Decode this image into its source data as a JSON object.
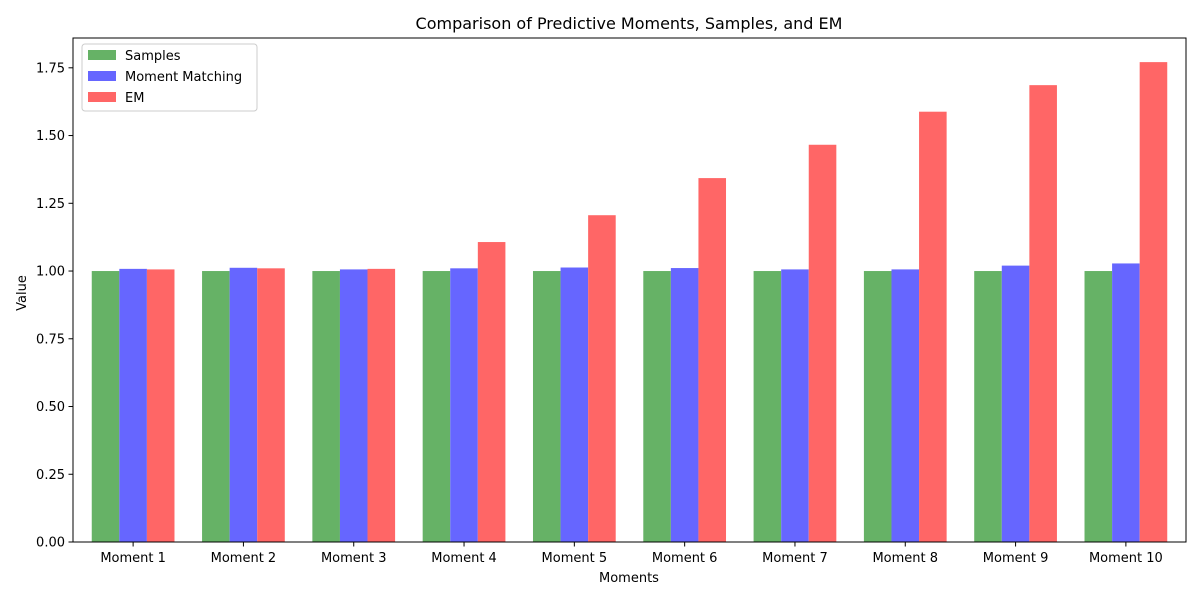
{
  "chart_data": {
    "type": "bar",
    "title": "Comparison of Predictive Moments, Samples, and EM",
    "xlabel": "Moments",
    "ylabel": "Value",
    "categories": [
      "Moment 1",
      "Moment 2",
      "Moment 3",
      "Moment 4",
      "Moment 5",
      "Moment 6",
      "Moment 7",
      "Moment 8",
      "Moment 9",
      "Moment 10"
    ],
    "series": [
      {
        "name": "Samples",
        "color": "#66b266",
        "values": [
          1.0,
          1.0,
          1.0,
          1.0,
          1.0,
          1.0,
          1.0,
          1.0,
          1.0,
          1.0
        ]
      },
      {
        "name": "Moment Matching",
        "color": "#6666ff",
        "values": [
          1.008,
          1.012,
          1.006,
          1.01,
          1.013,
          1.011,
          1.006,
          1.006,
          1.02,
          1.028
        ]
      },
      {
        "name": "EM",
        "color": "#ff6666",
        "values": [
          1.006,
          1.01,
          1.008,
          1.107,
          1.206,
          1.343,
          1.466,
          1.588,
          1.686,
          1.771
        ]
      }
    ],
    "ylim": [
      0,
      1.86
    ],
    "yticks": [
      0.0,
      0.25,
      0.5,
      0.75,
      1.0,
      1.25,
      1.5,
      1.75
    ],
    "ytick_labels": [
      "0.00",
      "0.25",
      "0.50",
      "0.75",
      "1.00",
      "1.25",
      "1.50",
      "1.75"
    ],
    "grid": false,
    "legend_position": "top-left"
  }
}
